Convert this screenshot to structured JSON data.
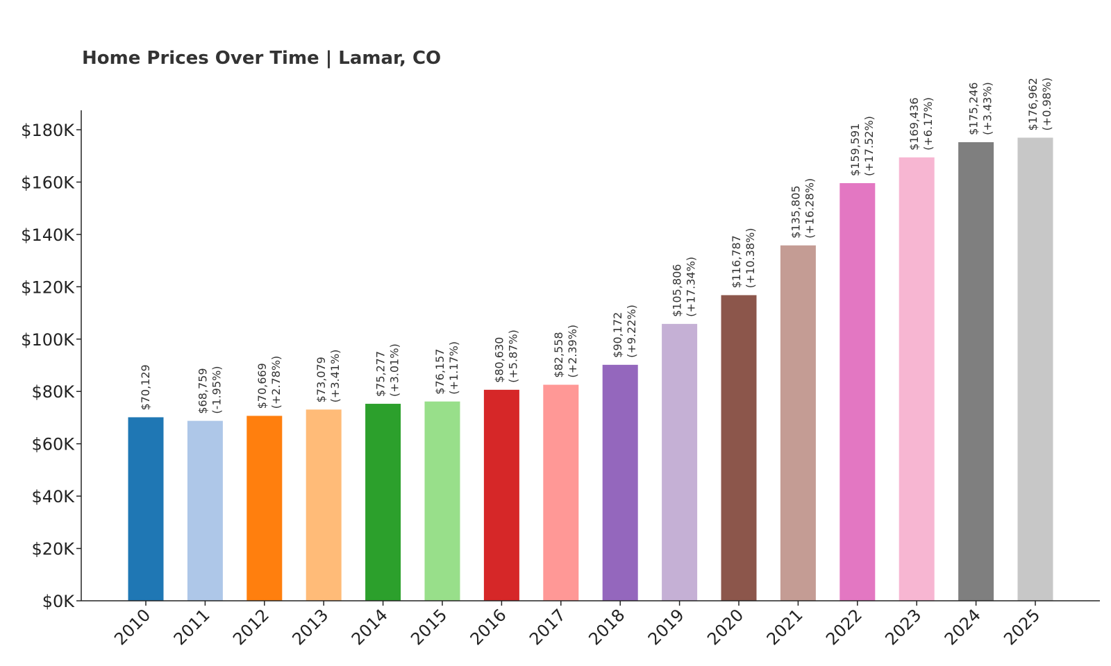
{
  "chart_data": {
    "type": "bar",
    "title": "Home Prices Over Time | Lamar, CO",
    "xlabel": "",
    "ylabel": "",
    "ylim": [
      0,
      187000
    ],
    "yticks": [
      0,
      20000,
      40000,
      60000,
      80000,
      100000,
      120000,
      140000,
      160000,
      180000
    ],
    "ytick_labels": [
      "$0K",
      "$20K",
      "$40K",
      "$60K",
      "$80K",
      "$100K",
      "$120K",
      "$140K",
      "$160K",
      "$180K"
    ],
    "grid": false,
    "legend": "none",
    "categories": [
      "2010",
      "2011",
      "2012",
      "2013",
      "2014",
      "2015",
      "2016",
      "2017",
      "2018",
      "2019",
      "2020",
      "2021",
      "2022",
      "2023",
      "2024",
      "2025"
    ],
    "values": [
      70129,
      68759,
      70669,
      73079,
      75277,
      76157,
      80630,
      82558,
      90172,
      105806,
      116787,
      135805,
      159591,
      169436,
      175246,
      176962
    ],
    "value_labels": [
      "$70,129",
      "$68,759",
      "$70,669",
      "$73,079",
      "$75,277",
      "$76,157",
      "$80,630",
      "$82,558",
      "$90,172",
      "$105,806",
      "$116,787",
      "$135,805",
      "$159,591",
      "$169,436",
      "$175,246",
      "$176,962"
    ],
    "change_labels": [
      "",
      "(-1.95%)",
      "(+2.78%)",
      "(+3.41%)",
      "(+3.01%)",
      "(+1.17%)",
      "(+5.87%)",
      "(+2.39%)",
      "(+9.22%)",
      "(+17.34%)",
      "(+10.38%)",
      "(+16.28%)",
      "(+17.52%)",
      "(+6.17%)",
      "(+3.43%)",
      "(+0.98%)"
    ],
    "colors": [
      "#1f77b4",
      "#aec7e8",
      "#ff7f0e",
      "#ffbb78",
      "#2ca02c",
      "#98df8a",
      "#d62728",
      "#ff9896",
      "#9467bd",
      "#c5b0d5",
      "#8c564b",
      "#c49c94",
      "#e377c2",
      "#f7b6d2",
      "#7f7f7f",
      "#c7c7c7"
    ]
  }
}
